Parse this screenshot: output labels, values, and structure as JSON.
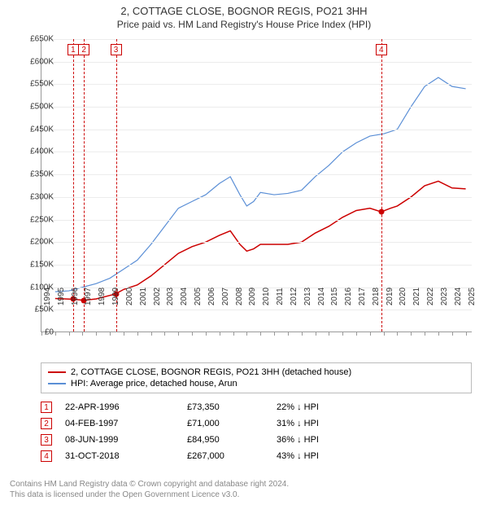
{
  "title": "2, COTTAGE CLOSE, BOGNOR REGIS, PO21 3HH",
  "subtitle": "Price paid vs. HM Land Registry's House Price Index (HPI)",
  "chart": {
    "type": "line",
    "x_range": [
      1994,
      2025.5
    ],
    "y_range": [
      0,
      650000
    ],
    "y_ticks": [
      0,
      50000,
      100000,
      150000,
      200000,
      250000,
      300000,
      350000,
      400000,
      450000,
      500000,
      550000,
      600000,
      650000
    ],
    "y_tick_labels": [
      "£0",
      "£50K",
      "£100K",
      "£150K",
      "£200K",
      "£250K",
      "£300K",
      "£350K",
      "£400K",
      "£450K",
      "£500K",
      "£550K",
      "£600K",
      "£650K"
    ],
    "x_ticks": [
      1994,
      1995,
      1996,
      1997,
      1998,
      1999,
      2000,
      2001,
      2002,
      2003,
      2004,
      2005,
      2006,
      2007,
      2008,
      2009,
      2010,
      2011,
      2012,
      2013,
      2014,
      2015,
      2016,
      2017,
      2018,
      2019,
      2020,
      2021,
      2022,
      2023,
      2024,
      2025
    ],
    "grid_color": "#ececec",
    "axis_color": "#999999",
    "background_color": "#ffffff",
    "series": [
      {
        "name": "property",
        "label": "2, COTTAGE CLOSE, BOGNOR REGIS, PO21 3HH (detached house)",
        "color": "#cc0000",
        "width": 1.5,
        "points": [
          [
            1995.0,
            75000
          ],
          [
            1996.3,
            73350
          ],
          [
            1997.1,
            71000
          ],
          [
            1998.0,
            74000
          ],
          [
            1999.4,
            84950
          ],
          [
            2000.0,
            95000
          ],
          [
            2001.0,
            105000
          ],
          [
            2002.0,
            125000
          ],
          [
            2003.0,
            150000
          ],
          [
            2004.0,
            175000
          ],
          [
            2005.0,
            190000
          ],
          [
            2006.0,
            200000
          ],
          [
            2007.0,
            215000
          ],
          [
            2007.8,
            225000
          ],
          [
            2008.5,
            195000
          ],
          [
            2009.0,
            180000
          ],
          [
            2009.5,
            185000
          ],
          [
            2010.0,
            195000
          ],
          [
            2011.0,
            195000
          ],
          [
            2012.0,
            195000
          ],
          [
            2013.0,
            200000
          ],
          [
            2014.0,
            220000
          ],
          [
            2015.0,
            235000
          ],
          [
            2016.0,
            255000
          ],
          [
            2017.0,
            270000
          ],
          [
            2018.0,
            275000
          ],
          [
            2018.83,
            267000
          ],
          [
            2019.5,
            275000
          ],
          [
            2020.0,
            280000
          ],
          [
            2021.0,
            300000
          ],
          [
            2022.0,
            325000
          ],
          [
            2023.0,
            335000
          ],
          [
            2024.0,
            320000
          ],
          [
            2025.0,
            318000
          ]
        ]
      },
      {
        "name": "hpi",
        "label": "HPI: Average price, detached house, Arun",
        "color": "#5b8fd6",
        "width": 1.2,
        "points": [
          [
            1995.0,
            90000
          ],
          [
            1996.0,
            92000
          ],
          [
            1997.0,
            100000
          ],
          [
            1998.0,
            108000
          ],
          [
            1999.0,
            120000
          ],
          [
            2000.0,
            140000
          ],
          [
            2001.0,
            160000
          ],
          [
            2002.0,
            195000
          ],
          [
            2003.0,
            235000
          ],
          [
            2004.0,
            275000
          ],
          [
            2005.0,
            290000
          ],
          [
            2006.0,
            305000
          ],
          [
            2007.0,
            330000
          ],
          [
            2007.8,
            345000
          ],
          [
            2008.5,
            305000
          ],
          [
            2009.0,
            280000
          ],
          [
            2009.5,
            290000
          ],
          [
            2010.0,
            310000
          ],
          [
            2011.0,
            305000
          ],
          [
            2012.0,
            308000
          ],
          [
            2013.0,
            315000
          ],
          [
            2014.0,
            345000
          ],
          [
            2015.0,
            370000
          ],
          [
            2016.0,
            400000
          ],
          [
            2017.0,
            420000
          ],
          [
            2018.0,
            435000
          ],
          [
            2019.0,
            440000
          ],
          [
            2020.0,
            450000
          ],
          [
            2021.0,
            500000
          ],
          [
            2022.0,
            545000
          ],
          [
            2023.0,
            565000
          ],
          [
            2024.0,
            545000
          ],
          [
            2025.0,
            540000
          ]
        ]
      }
    ],
    "markers": [
      {
        "n": "1",
        "x": 1996.31,
        "y": 73350
      },
      {
        "n": "2",
        "x": 1997.1,
        "y": 71000
      },
      {
        "n": "3",
        "x": 1999.44,
        "y": 84950
      },
      {
        "n": "4",
        "x": 2018.83,
        "y": 267000
      }
    ]
  },
  "legend": {
    "border_color": "#bbbbbb"
  },
  "transactions": [
    {
      "n": "1",
      "date": "22-APR-1996",
      "price": "£73,350",
      "pct": "22%",
      "dir": "↓",
      "suffix": "HPI"
    },
    {
      "n": "2",
      "date": "04-FEB-1997",
      "price": "£71,000",
      "pct": "31%",
      "dir": "↓",
      "suffix": "HPI"
    },
    {
      "n": "3",
      "date": "08-JUN-1999",
      "price": "£84,950",
      "pct": "36%",
      "dir": "↓",
      "suffix": "HPI"
    },
    {
      "n": "4",
      "date": "31-OCT-2018",
      "price": "£267,000",
      "pct": "43%",
      "dir": "↓",
      "suffix": "HPI"
    }
  ],
  "footer": {
    "line1": "Contains HM Land Registry data © Crown copyright and database right 2024.",
    "line2": "This data is licensed under the Open Government Licence v3.0."
  }
}
